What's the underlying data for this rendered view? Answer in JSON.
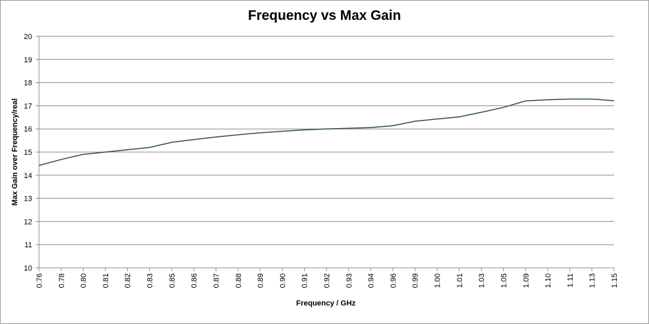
{
  "chart_data": {
    "type": "line",
    "title": "Frequency vs Max Gain",
    "xlabel": "Frequency / GHz",
    "ylabel": "Max Gain over Frequency/real",
    "ylim": [
      10,
      20
    ],
    "yticks": [
      "10",
      "11",
      "12",
      "13",
      "14",
      "15",
      "16",
      "17",
      "18",
      "19",
      "20"
    ],
    "grid": true,
    "legend": "none",
    "categories": [
      "0.76",
      "0.78",
      "0.80",
      "0.81",
      "0.82",
      "0.83",
      "0.85",
      "0.86",
      "0.87",
      "0.88",
      "0.89",
      "0.90",
      "0.91",
      "0.92",
      "0.93",
      "0.94",
      "0.96",
      "0.99",
      "1.00",
      "1.01",
      "1.03",
      "1.05",
      "1.09",
      "1.10",
      "1.11",
      "1.13",
      "1.15"
    ],
    "series": [
      {
        "name": "",
        "color": "#2f4f5f",
        "values": [
          14.42,
          14.68,
          14.9,
          15.0,
          15.1,
          15.2,
          15.42,
          15.54,
          15.65,
          15.75,
          15.83,
          15.9,
          15.96,
          16.0,
          16.03,
          16.06,
          16.14,
          16.33,
          16.43,
          16.52,
          16.72,
          16.93,
          17.21,
          17.26,
          17.29,
          17.29,
          17.22
        ]
      }
    ]
  }
}
